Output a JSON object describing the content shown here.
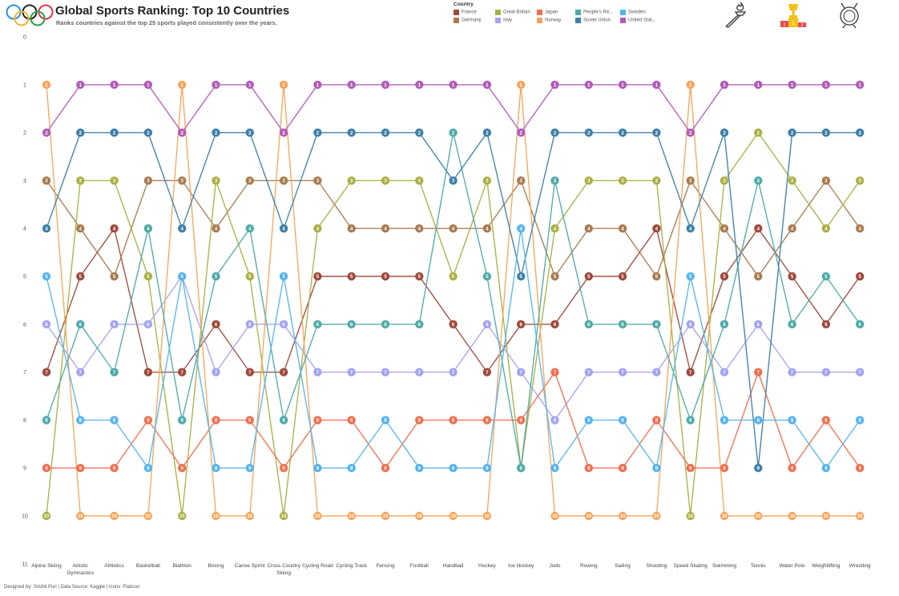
{
  "header": {
    "title": "Global Sports Ranking: Top 10 Countries",
    "subtitle": "Ranks countries against the top 25 sports played consistently over the years."
  },
  "legend": {
    "title": "Country",
    "items": [
      {
        "label": "France",
        "color": "#9c4a3c"
      },
      {
        "label": "Germany",
        "color": "#a87b4f"
      },
      {
        "label": "Great Britain",
        "color": "#aab044"
      },
      {
        "label": "Italy",
        "color": "#a3a3f0"
      },
      {
        "label": "Japan",
        "color": "#f06e4f"
      },
      {
        "label": "Norway",
        "color": "#f5a55a"
      },
      {
        "label": "People's Re...",
        "color": "#4eaaa8"
      },
      {
        "label": "Soviet Union",
        "color": "#3e7fa8"
      },
      {
        "label": "Sweden",
        "color": "#56b4ee"
      },
      {
        "label": "United Stat...",
        "color": "#b25cb8"
      }
    ]
  },
  "icons": [
    "olympic-rings-icon",
    "torch-icon",
    "podium-icon",
    "medal-icon"
  ],
  "footer": "Designed by: Srishti Puri | Data Source: Kaggle | Icons: Flaticon",
  "chart_data": {
    "type": "line",
    "categories": [
      "Alpine Skiing",
      "Artistic Gymnastics",
      "Athletics",
      "Basketball",
      "Biathlon",
      "Boxing",
      "Canoe Sprint",
      "Cross Country Skiing",
      "Cycling Road",
      "Cycling Track",
      "Fencing",
      "Football",
      "Handball",
      "Hockey",
      "Ice Hockey",
      "Judo",
      "Rowing",
      "Sailing",
      "Shooting",
      "Speed Skating",
      "Swimming",
      "Tennis",
      "Water Polo",
      "Weightlifting",
      "Wrestling"
    ],
    "y_ticks": [
      0,
      1,
      2,
      3,
      4,
      5,
      6,
      7,
      8,
      9,
      10,
      11
    ],
    "ylim": [
      0,
      11
    ],
    "y_reversed": true,
    "series": [
      {
        "name": "France",
        "color": "#9c4a3c",
        "values": [
          7,
          5,
          4,
          7,
          7,
          6,
          7,
          7,
          5,
          5,
          5,
          5,
          6,
          7,
          6,
          6,
          5,
          5,
          4,
          7,
          5,
          4,
          5,
          6,
          5
        ]
      },
      {
        "name": "Germany",
        "color": "#a87b4f",
        "values": [
          3,
          4,
          5,
          3,
          3,
          4,
          3,
          3,
          3,
          4,
          4,
          4,
          4,
          4,
          3,
          5,
          4,
          4,
          5,
          3,
          4,
          5,
          4,
          3,
          4
        ]
      },
      {
        "name": "Great Britain",
        "color": "#aab044",
        "values": [
          10,
          3,
          3,
          5,
          10,
          3,
          5,
          10,
          4,
          3,
          3,
          3,
          5,
          3,
          9,
          4,
          3,
          3,
          3,
          10,
          3,
          2,
          3,
          4,
          3
        ]
      },
      {
        "name": "Italy",
        "color": "#a3a3f0",
        "values": [
          6,
          7,
          6,
          6,
          5,
          7,
          6,
          6,
          7,
          7,
          7,
          7,
          7,
          6,
          7,
          8,
          7,
          7,
          7,
          6,
          7,
          6,
          7,
          7,
          7
        ]
      },
      {
        "name": "Japan",
        "color": "#f06e4f",
        "values": [
          9,
          9,
          9,
          8,
          9,
          8,
          8,
          9,
          8,
          8,
          9,
          8,
          8,
          8,
          8,
          7,
          9,
          9,
          8,
          9,
          9,
          7,
          9,
          8,
          9
        ]
      },
      {
        "name": "Norway",
        "color": "#f5a55a",
        "values": [
          1,
          10,
          10,
          10,
          1,
          10,
          10,
          1,
          10,
          10,
          10,
          10,
          10,
          10,
          1,
          10,
          10,
          10,
          10,
          1,
          10,
          10,
          10,
          10,
          10
        ]
      },
      {
        "name": "People's Re...",
        "color": "#4eaaa8",
        "values": [
          8,
          6,
          7,
          4,
          8,
          5,
          4,
          8,
          6,
          6,
          6,
          6,
          2,
          5,
          9,
          3,
          6,
          6,
          6,
          8,
          6,
          3,
          6,
          5,
          6
        ]
      },
      {
        "name": "Soviet Union",
        "color": "#3e7fa8",
        "values": [
          4,
          2,
          2,
          2,
          4,
          2,
          2,
          4,
          2,
          2,
          2,
          2,
          3,
          2,
          5,
          2,
          2,
          2,
          2,
          4,
          2,
          9,
          2,
          2,
          2
        ]
      },
      {
        "name": "Sweden",
        "color": "#56b4ee",
        "values": [
          5,
          8,
          8,
          9,
          5,
          9,
          9,
          5,
          9,
          9,
          8,
          9,
          9,
          9,
          4,
          9,
          8,
          8,
          9,
          5,
          8,
          8,
          8,
          9,
          8
        ]
      },
      {
        "name": "United Stat...",
        "color": "#b25cb8",
        "values": [
          2,
          1,
          1,
          1,
          2,
          1,
          1,
          2,
          1,
          1,
          1,
          1,
          1,
          1,
          2,
          1,
          1,
          1,
          1,
          2,
          1,
          1,
          1,
          1,
          1
        ]
      }
    ]
  }
}
